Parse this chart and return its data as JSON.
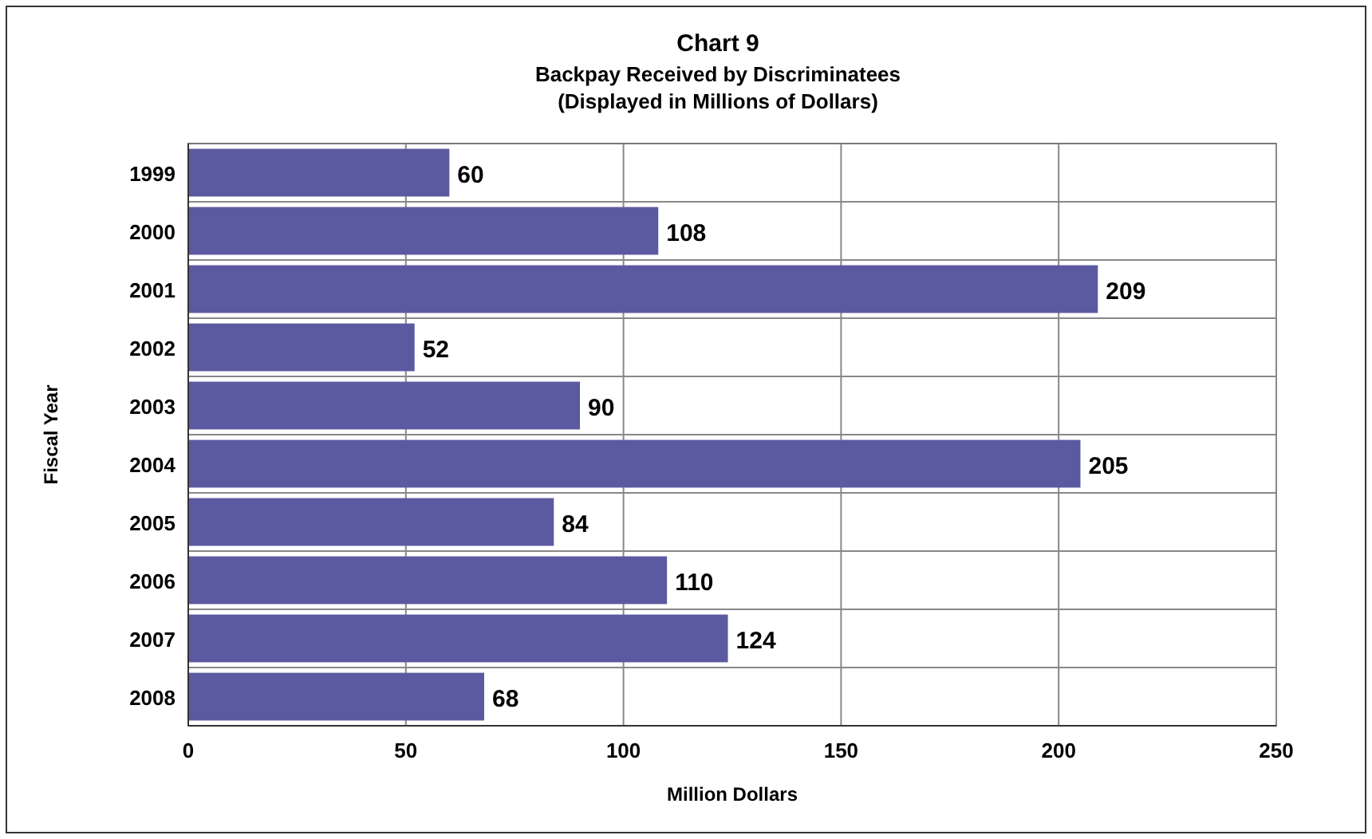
{
  "chart_data": {
    "type": "bar",
    "orientation": "horizontal",
    "title": "Chart 9",
    "subtitle": "Backpay Received by Discriminatees\n(Displayed in Millions of Dollars)",
    "xlabel": "Million Dollars",
    "ylabel": "Fiscal Year",
    "categories": [
      "1999",
      "2000",
      "2001",
      "2002",
      "2003",
      "2004",
      "2005",
      "2006",
      "2007",
      "2008"
    ],
    "values": [
      60,
      108,
      209,
      52,
      90,
      205,
      84,
      110,
      124,
      68
    ],
    "color": "#5b5aa0",
    "xlim": [
      0,
      250
    ],
    "xticks": [
      0,
      50,
      100,
      150,
      200,
      250
    ],
    "grid": true,
    "data_labels": true
  }
}
